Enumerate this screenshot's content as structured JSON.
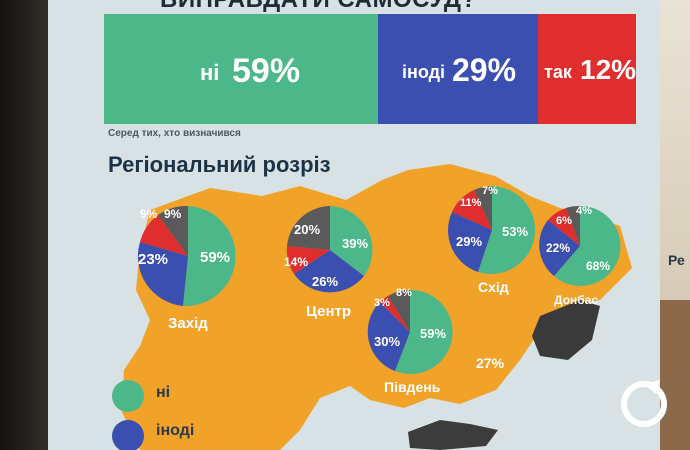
{
  "poster": {
    "question": "ВИПРАВДАТИ САМОСУД?",
    "note": "Серед тих, хто визначився",
    "section_title": "Регіональний розріз",
    "colors": {
      "no": "#4cb88a",
      "sometimes": "#3a4fb0",
      "yes": "#e02d2d",
      "undecided": "#5a5a5a",
      "map": "#f1a229"
    }
  },
  "overall": [
    {
      "label": "ні",
      "value": "59%"
    },
    {
      "label": "іноді",
      "value": "29%"
    },
    {
      "label": "так",
      "value": "12%"
    }
  ],
  "regions": [
    {
      "name": "Захід",
      "values": [
        "59%",
        "23%",
        "9%",
        "9%"
      ]
    },
    {
      "name": "Центр",
      "values": [
        "39%",
        "26%",
        "14%",
        "20%"
      ]
    },
    {
      "name": "Схід",
      "values": [
        "53%",
        "29%",
        "11%",
        "7%"
      ]
    },
    {
      "name": "Донбас",
      "values": [
        "68%",
        "22%",
        "6%",
        "4%"
      ]
    },
    {
      "name": "Південь",
      "values": [
        "59%",
        "30%",
        "3%",
        "8%"
      ]
    }
  ],
  "extra_label": "27%",
  "legend": [
    {
      "label": "ні",
      "color": "#4cb88a"
    },
    {
      "label": "іноді",
      "color": "#3a4fb0"
    }
  ],
  "right_edge_letter": "Ре"
}
